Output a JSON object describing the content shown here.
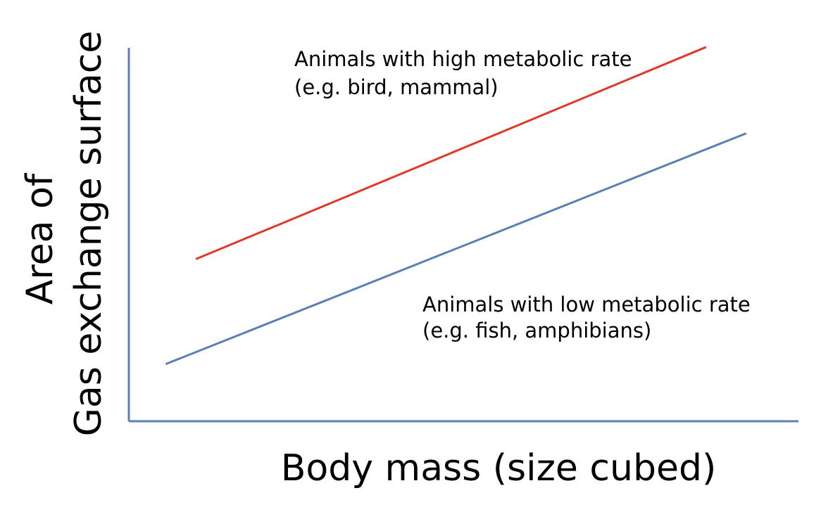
{
  "chart_data": {
    "type": "line",
    "title": "",
    "xlabel": "Body mass (size cubed)",
    "ylabel_lines": [
      "Area of",
      "Gas exchange surface"
    ],
    "xlim": [
      0,
      100
    ],
    "ylim": [
      0,
      100
    ],
    "grid": false,
    "legend": "none",
    "series": [
      {
        "key": "high",
        "color": "#e0392b",
        "x": [
          10,
          86.2
        ],
        "y": [
          43.4,
          100.2
        ],
        "annotation_lines": [
          "Animals with high metabolic rate",
          "(e.g. bird, mammal)"
        ]
      },
      {
        "key": "low",
        "color": "#5b7fb4",
        "x": [
          5.5,
          92.2
        ],
        "y": [
          15.3,
          77.1
        ],
        "annotation_lines": [
          "Animals with low metabolic rate",
          "(e.g. fish, amphibians)"
        ]
      }
    ]
  },
  "colors": {
    "axis": "#5b7fb4"
  }
}
